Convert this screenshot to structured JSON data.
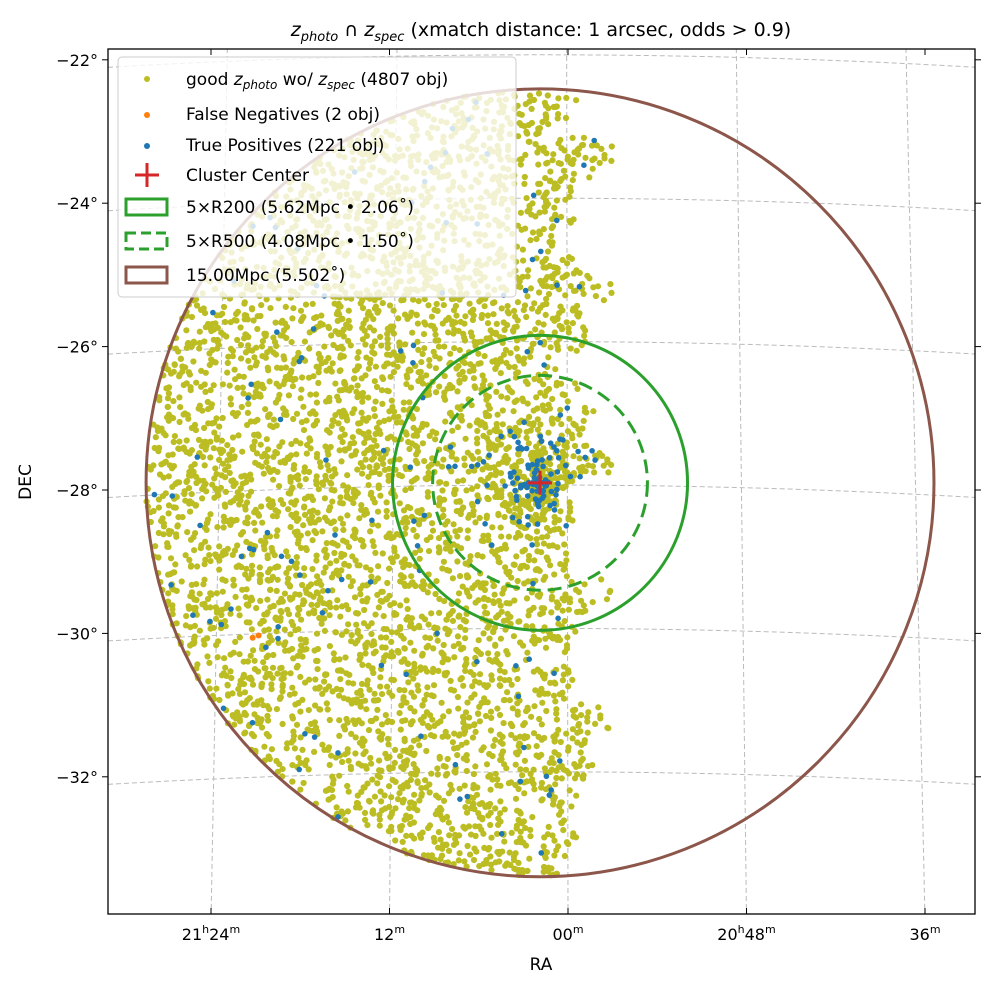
{
  "chart_data": {
    "type": "scatter",
    "title": {
      "z1": "z",
      "z1_sub": "photo",
      "cap": " ∩ ",
      "z2": "z",
      "z2_sub": "spec",
      "rest": " (xmatch distance: 1 arcsec, odds > 0.9)"
    },
    "xlabel": "RA",
    "ylabel": "DEC",
    "x_ticks": [
      {
        "ra_deg": 321,
        "h": "21",
        "m": "24"
      },
      {
        "ra_deg": 318,
        "h": "",
        "m": "12"
      },
      {
        "ra_deg": 315,
        "h": "",
        "m": "00"
      },
      {
        "ra_deg": 312,
        "h": "20",
        "m": "48"
      },
      {
        "ra_deg": 309,
        "h": "",
        "m": "36"
      }
    ],
    "y_ticks": [
      {
        "dec": -22,
        "label": "−22°"
      },
      {
        "dec": -24,
        "label": "−24°"
      },
      {
        "dec": -26,
        "label": "−26°"
      },
      {
        "dec": -28,
        "label": "−28°"
      },
      {
        "dec": -30,
        "label": "−30°"
      },
      {
        "dec": -32,
        "label": "−32°"
      }
    ],
    "grid": true,
    "cluster_center": {
      "ra_deg": 315.47,
      "dec": -27.9
    },
    "series": [
      {
        "name": "good_photo",
        "label_pre": "good ",
        "label_z1": "z",
        "label_sub1": "photo",
        "label_mid": " wo/ ",
        "label_z2": "z",
        "label_sub2": "spec",
        "label_post": " (4807 obj)",
        "count": 4807,
        "color": "#bcbd22"
      },
      {
        "name": "false_negatives",
        "label": "False Negatives (2 obj)",
        "count": 2,
        "color": "#ff7f0e",
        "points": [
          {
            "ra_deg": 320.3,
            "dec": -30.06
          },
          {
            "ra_deg": 320.2,
            "dec": -30.03
          }
        ]
      },
      {
        "name": "true_positives",
        "label": "True Positives (221 obj)",
        "count": 221,
        "color": "#1f77b4"
      }
    ],
    "markers": [
      {
        "name": "cluster_center",
        "label": "Cluster Center",
        "color": "#d62728"
      }
    ],
    "circles": [
      {
        "name": "5xR200",
        "label": "5×R200 (5.62Mpc • 2.06$^\\circ$)",
        "display": "5×R200 (5.62Mpc • 2.06˚)",
        "radius_deg": 2.06,
        "color": "#2ca02c",
        "style": "solid"
      },
      {
        "name": "5xR500",
        "display": "5×R500 (4.08Mpc • 1.50˚)",
        "radius_deg": 1.5,
        "color": "#2ca02c",
        "style": "dashed"
      },
      {
        "name": "15Mpc",
        "display": "15.00Mpc (5.502˚)",
        "radius_deg": 5.502,
        "color": "#8c564b",
        "style": "solid"
      }
    ],
    "legend_position": "top-left"
  }
}
